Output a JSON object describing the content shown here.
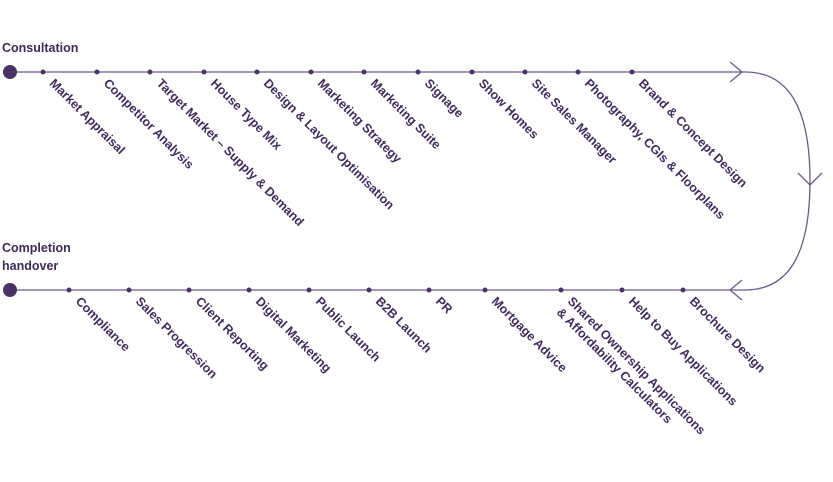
{
  "start_label": "Consultation",
  "end_label": [
    "Completion",
    "handover"
  ],
  "top_steps": [
    "Market Appraisal",
    "Competitor Analysis",
    "Target Market – Supply & Demand",
    "House Type Mix",
    "Design & Layout Optimisation",
    "Marketing Strategy",
    "Marketing Suite",
    "Signage",
    "Show Homes",
    "Site Sales Manager",
    "Photography, CGIs & Floorplans",
    "Brand & Concept Design"
  ],
  "bottom_steps": [
    [
      "Compliance"
    ],
    [
      "Sales Progression"
    ],
    [
      "Client Reporting"
    ],
    [
      "Digital Marketing"
    ],
    [
      "Public Launch"
    ],
    [
      "B2B Launch"
    ],
    [
      "PR"
    ],
    [
      "Mortgage Advice"
    ],
    [
      "Shared Ownership Applications",
      "& Affordability Calculators"
    ],
    [
      "Help to Buy Applications"
    ],
    [
      "Brochure Design"
    ]
  ]
}
